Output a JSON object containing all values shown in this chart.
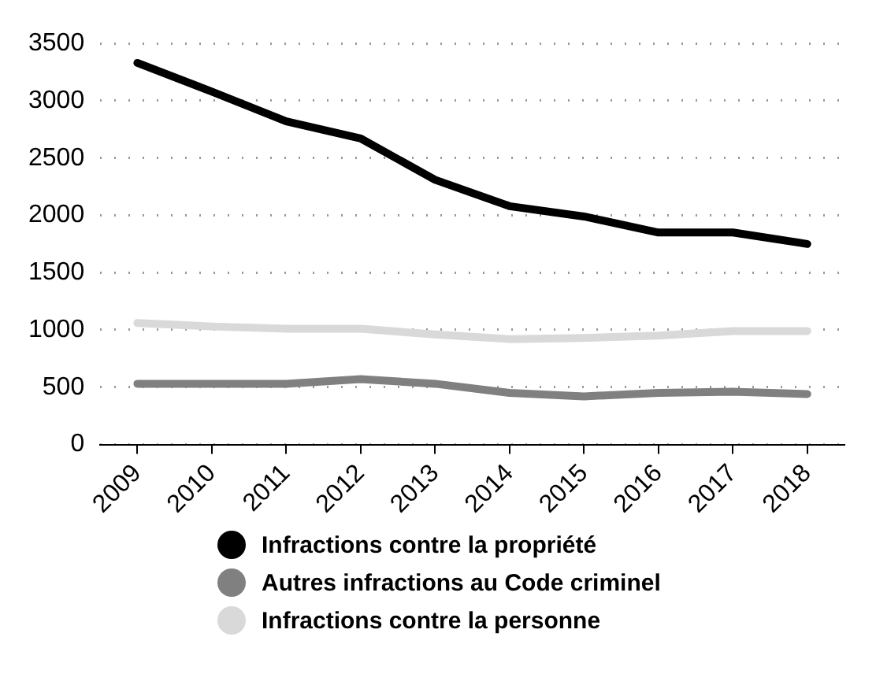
{
  "chart_data": {
    "type": "line",
    "categories": [
      "2009",
      "2010",
      "2011",
      "2012",
      "2013",
      "2014",
      "2015",
      "2016",
      "2017",
      "2018"
    ],
    "series": [
      {
        "name": "Infractions contre la propriété",
        "color": "#000000",
        "values": [
          3330,
          3080,
          2820,
          2670,
          2310,
          2080,
          1990,
          1850,
          1850,
          1750
        ]
      },
      {
        "name": "Autres infractions au Code criminel",
        "color": "#808080",
        "values": [
          530,
          530,
          530,
          570,
          530,
          450,
          420,
          450,
          460,
          440
        ]
      },
      {
        "name": "Infractions contre la personne",
        "color": "#d9d9d9",
        "values": [
          1060,
          1030,
          1010,
          1010,
          960,
          920,
          930,
          950,
          990,
          990
        ]
      }
    ],
    "ylim": [
      0,
      3500
    ],
    "yticks": [
      0,
      500,
      1000,
      1500,
      2000,
      2500,
      3000,
      3500
    ],
    "grid": "y",
    "legend": "bottom",
    "marker": "none",
    "line_style": "solid"
  }
}
